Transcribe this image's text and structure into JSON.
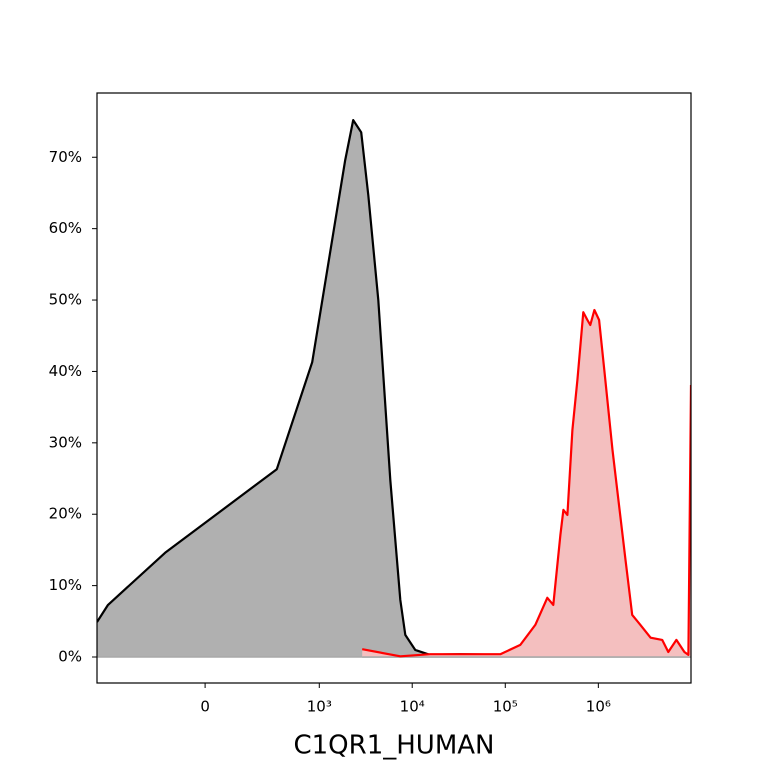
{
  "chart_data": {
    "type": "area",
    "xlabel": "C1QR1_HUMAN",
    "xscale": "logicle",
    "xlim": [
      -859,
      9900000
    ],
    "ylim": [
      -3.64,
      79
    ],
    "xticks": [
      0,
      {
        "value": 1000,
        "label": "10³"
      },
      {
        "value": 10000,
        "label": "10⁴"
      },
      {
        "value": 100000,
        "label": "10⁵"
      },
      {
        "value": 1000000,
        "label": "10⁶"
      }
    ],
    "yticks": [
      {
        "value": 0,
        "label": "0%"
      },
      {
        "value": 10,
        "label": "10%"
      },
      {
        "value": 20,
        "label": "20%"
      },
      {
        "value": 30,
        "label": "30%"
      },
      {
        "value": 40,
        "label": "40%"
      },
      {
        "value": 50,
        "label": "50%"
      },
      {
        "value": 60,
        "label": "60%"
      },
      {
        "value": 70,
        "label": "70%"
      }
    ],
    "series": [
      {
        "color": "#000000",
        "fill": "#b0b0b0",
        "x": [
          -859,
          -652,
          -138,
          341,
          838,
          1904,
          2323,
          2830,
          3370,
          4320,
          5810,
          7440,
          8420,
          10780,
          15600,
          32800,
          88400,
          305000,
          1056000,
          3640000,
          9280000,
          9900000
        ],
        "values": [
          4.9,
          7.3,
          14.6,
          26.3,
          41.3,
          69.6,
          75.2,
          73.5,
          64.7,
          50.0,
          24.8,
          8.0,
          3.1,
          1.0,
          0.3,
          0.4,
          0.3,
          0.3,
          0.1,
          0.1,
          0.1,
          2.4
        ]
      },
      {
        "color": "#ff0000",
        "fill": "#f4bfbf",
        "x": [
          2900,
          7440,
          15600,
          88400,
          145000,
          210000,
          283000,
          328000,
          391000,
          421000,
          465000,
          526000,
          595000,
          690000,
          762000,
          820000,
          906000,
          1020000,
          1160000,
          1420000,
          1960000,
          2310000,
          2830000,
          3640000,
          4860000,
          5640000,
          6890000,
          8400000,
          9280000,
          9900000
        ],
        "values": [
          1.1,
          0.1,
          0.4,
          0.4,
          1.7,
          4.5,
          8.3,
          7.3,
          17.1,
          20.6,
          19.9,
          31.8,
          38.8,
          48.3,
          47.2,
          46.5,
          48.6,
          47.2,
          40.2,
          29.0,
          13.6,
          5.9,
          4.5,
          2.7,
          2.4,
          0.7,
          2.4,
          0.7,
          0.3,
          38.1
        ]
      }
    ]
  }
}
